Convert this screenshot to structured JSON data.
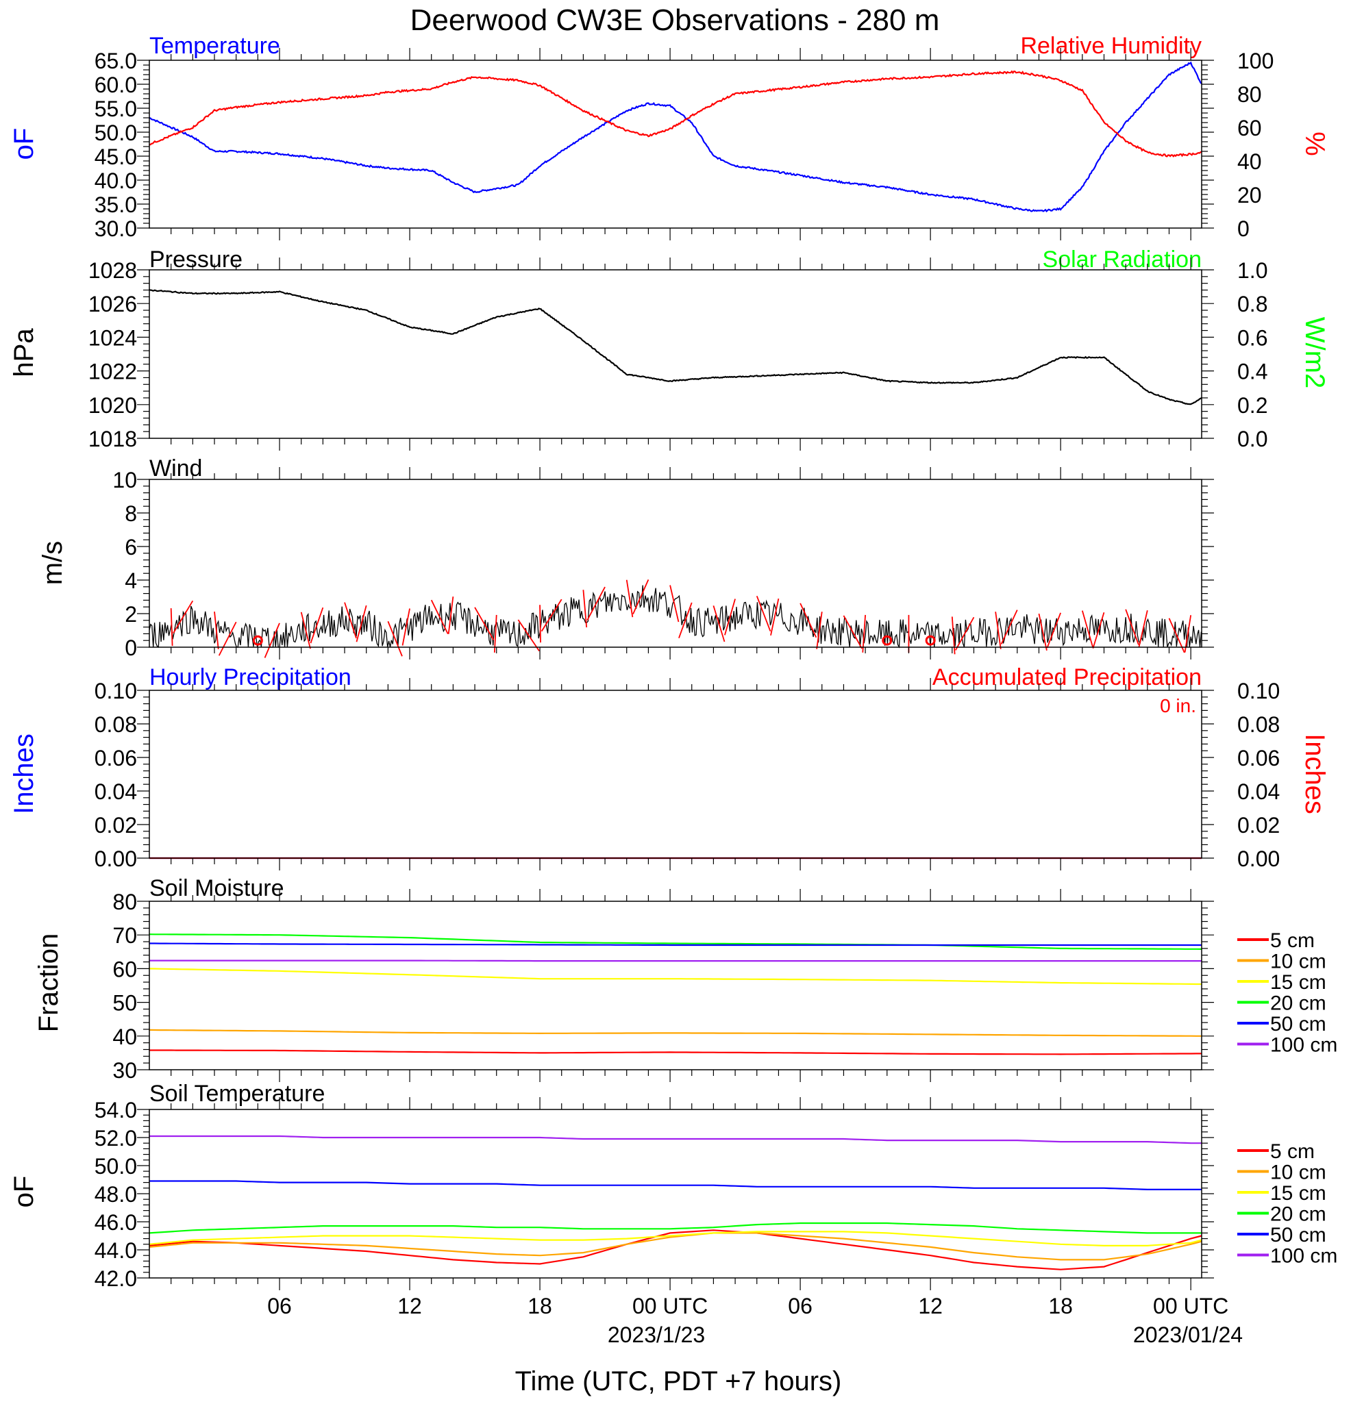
{
  "title": "Deerwood CW3E Observations - 280 m",
  "x_axis": {
    "tick_labels": [
      "06",
      "12",
      "18",
      "00 UTC",
      "06",
      "12",
      "18",
      "00 UTC"
    ],
    "date_labels": [
      "2023/1/23",
      "2023/01/24"
    ],
    "xlabel": "Time (UTC, PDT +7 hours)"
  },
  "colors": {
    "temperature": "#0000ff",
    "humidity": "#ff0000",
    "pressure": "#000000",
    "solar": "#00ff00",
    "wind": "#000000",
    "barbs": "#ff0000",
    "depth_5": "#ff0000",
    "depth_10": "#ffa500",
    "depth_15": "#ffff00",
    "depth_20": "#00ff00",
    "depth_50": "#0000ff",
    "depth_100": "#a020f0"
  },
  "panels": {
    "temp_rh": {
      "left_title": "Temperature",
      "right_title": "Relative Humidity",
      "left_unit": "oF",
      "right_unit": "%",
      "left_ticks": [
        "65.0",
        "60.0",
        "55.0",
        "50.0",
        "45.0",
        "40.0",
        "35.0",
        "30.0"
      ],
      "right_ticks": [
        "100",
        "80",
        "60",
        "40",
        "20",
        "0"
      ]
    },
    "pressure": {
      "left_title": "Pressure",
      "right_title": "Solar Radiation",
      "left_unit": "hPa",
      "right_unit": "W/m2",
      "left_ticks": [
        "1028",
        "1026",
        "1024",
        "1022",
        "1020",
        "1018"
      ],
      "right_ticks": [
        "1.0",
        "0.8",
        "0.6",
        "0.4",
        "0.2",
        "0.0"
      ]
    },
    "wind": {
      "left_title": "Wind",
      "left_unit": "m/s",
      "left_ticks": [
        "10",
        "8",
        "6",
        "4",
        "2",
        "0"
      ]
    },
    "precip": {
      "left_title": "Hourly Precipitation",
      "right_title": "Accumulated Precipitation",
      "total_label": "0 in.",
      "left_unit": "Inches",
      "right_unit": "Inches",
      "left_ticks": [
        "0.10",
        "0.08",
        "0.06",
        "0.04",
        "0.02",
        "0.00"
      ],
      "right_ticks": [
        "0.10",
        "0.08",
        "0.06",
        "0.04",
        "0.02",
        "0.00"
      ]
    },
    "soil_moisture": {
      "left_title": "Soil Moisture",
      "left_unit": "Fraction",
      "left_ticks": [
        "80",
        "70",
        "60",
        "50",
        "40",
        "30"
      ],
      "legend": [
        "5 cm",
        "10 cm",
        "15 cm",
        "20 cm",
        "50 cm",
        "100 cm"
      ]
    },
    "soil_temp": {
      "left_title": "Soil Temperature",
      "left_unit": "oF",
      "left_ticks": [
        "54.0",
        "52.0",
        "50.0",
        "48.0",
        "46.0",
        "44.0",
        "42.0"
      ],
      "legend": [
        "5 cm",
        "10 cm",
        "15 cm",
        "20 cm",
        "50 cm",
        "100 cm"
      ]
    }
  },
  "chart_data": [
    {
      "type": "line",
      "title": "Temperature / Relative Humidity",
      "x": [
        0,
        2,
        3,
        4,
        6,
        8,
        10,
        11,
        13,
        14,
        15,
        17,
        18,
        20,
        22,
        23,
        24,
        25,
        26,
        27,
        30,
        32,
        34,
        36,
        38,
        40,
        41,
        42,
        43,
        44,
        45,
        46,
        47,
        48,
        48.5
      ],
      "series": [
        {
          "name": "Temperature",
          "axis": "left",
          "unit": "oF",
          "values": [
            53,
            49,
            46,
            46,
            45.5,
            44.5,
            43,
            42.5,
            42,
            39.5,
            37.5,
            39,
            43,
            49,
            54.5,
            56,
            55.5,
            52,
            45,
            43,
            41,
            39.5,
            38.5,
            37,
            36,
            34,
            33.5,
            34,
            38.5,
            46,
            52,
            57,
            62,
            64.5,
            60
          ]
        },
        {
          "name": "Relative Humidity",
          "axis": "right",
          "unit": "%",
          "values": [
            50,
            60,
            70,
            72,
            75,
            77,
            79,
            81,
            83,
            87,
            90,
            88,
            85,
            70,
            58,
            55,
            59,
            67,
            74,
            80,
            84,
            87,
            89,
            90,
            92,
            93,
            91,
            88,
            82,
            63,
            52,
            45,
            43,
            44,
            45
          ]
        }
      ],
      "ylim_left": [
        30,
        65
      ],
      "ylim_right": [
        0,
        100
      ]
    },
    {
      "type": "line",
      "title": "Pressure",
      "x": [
        0,
        2,
        4,
        6,
        8,
        10,
        12,
        14,
        16,
        18,
        20,
        22,
        24,
        26,
        28,
        30,
        32,
        34,
        36,
        38,
        40,
        42,
        44,
        45,
        46,
        47,
        48,
        48.5
      ],
      "series": [
        {
          "name": "Pressure",
          "axis": "left",
          "unit": "hPa",
          "values": [
            1026.8,
            1026.6,
            1026.6,
            1026.7,
            1026.1,
            1025.6,
            1024.6,
            1024.2,
            1025.2,
            1025.7,
            1023.8,
            1021.8,
            1021.4,
            1021.6,
            1021.7,
            1021.8,
            1021.9,
            1021.4,
            1021.3,
            1021.3,
            1021.6,
            1022.8,
            1022.8,
            1021.8,
            1020.8,
            1020.3,
            1020.0,
            1020.4
          ]
        }
      ],
      "ylim_left": [
        1018,
        1028
      ],
      "ylim_right": [
        0.0,
        1.0
      ]
    },
    {
      "type": "line",
      "title": "Wind",
      "x": [
        0,
        1,
        2,
        3,
        4,
        5,
        6,
        7,
        8,
        9,
        10,
        11,
        12,
        13,
        14,
        15,
        16,
        17,
        18,
        19,
        20,
        21,
        22,
        23,
        24,
        25,
        26,
        27,
        28,
        29,
        30,
        31,
        32,
        33,
        34,
        35,
        36,
        37,
        38,
        39,
        40,
        41,
        42,
        43,
        44,
        45,
        46,
        47,
        48
      ],
      "series": [
        {
          "name": "Wind speed",
          "axis": "left",
          "unit": "m/s",
          "values": [
            0.6,
            1.2,
            1.8,
            1.0,
            0.5,
            0.6,
            0.4,
            1.0,
            1.3,
            1.6,
            1.4,
            0.5,
            1.2,
            1.8,
            1.9,
            1.4,
            0.8,
            0.7,
            1.4,
            1.9,
            2.3,
            2.6,
            2.9,
            3.0,
            2.6,
            1.6,
            1.4,
            1.8,
            2.0,
            1.8,
            1.6,
            1.0,
            0.9,
            0.8,
            0.7,
            0.8,
            0.6,
            0.7,
            0.8,
            1.0,
            1.2,
            0.9,
            1.0,
            1.1,
            1.0,
            1.2,
            1.1,
            0.7,
            0.8
          ]
        }
      ],
      "ylim_left": [
        0,
        10
      ]
    },
    {
      "type": "line",
      "title": "Precipitation",
      "x": [
        0,
        48.5
      ],
      "series": [
        {
          "name": "Hourly Precipitation",
          "axis": "left",
          "unit": "in",
          "values": [
            0,
            0
          ]
        },
        {
          "name": "Accumulated Precipitation",
          "axis": "right",
          "unit": "in",
          "values": [
            0,
            0
          ]
        }
      ],
      "ylim_left": [
        0,
        0.1
      ],
      "ylim_right": [
        0,
        0.1
      ]
    },
    {
      "type": "line",
      "title": "Soil Moisture",
      "x": [
        0,
        6,
        12,
        18,
        24,
        30,
        36,
        42,
        48.5
      ],
      "series": [
        {
          "name": "5 cm",
          "values": [
            35.8,
            35.7,
            35.3,
            35.0,
            35.2,
            35.0,
            34.7,
            34.6,
            34.8
          ]
        },
        {
          "name": "10 cm",
          "values": [
            41.8,
            41.5,
            41.0,
            40.8,
            40.9,
            40.8,
            40.5,
            40.2,
            40.0
          ]
        },
        {
          "name": "15 cm",
          "values": [
            60.0,
            59.3,
            58.2,
            57.0,
            57.0,
            56.8,
            56.5,
            55.8,
            55.4
          ]
        },
        {
          "name": "20 cm",
          "values": [
            70.2,
            70.0,
            69.2,
            67.8,
            67.5,
            67.3,
            67.0,
            66.0,
            65.8
          ]
        },
        {
          "name": "50 cm",
          "values": [
            67.5,
            67.3,
            67.2,
            67.1,
            67.0,
            67.0,
            67.0,
            67.0,
            67.0
          ]
        },
        {
          "name": "100 cm",
          "values": [
            62.4,
            62.4,
            62.4,
            62.3,
            62.3,
            62.3,
            62.3,
            62.3,
            62.3
          ]
        }
      ],
      "ylim_left": [
        30,
        80
      ]
    },
    {
      "type": "line",
      "title": "Soil Temperature",
      "x": [
        0,
        2,
        4,
        6,
        8,
        10,
        12,
        14,
        16,
        18,
        20,
        22,
        24,
        26,
        28,
        30,
        32,
        34,
        36,
        38,
        40,
        42,
        44,
        46,
        48,
        48.5
      ],
      "series": [
        {
          "name": "5 cm",
          "values": [
            44.3,
            44.6,
            44.5,
            44.3,
            44.1,
            43.9,
            43.6,
            43.3,
            43.1,
            43.0,
            43.5,
            44.4,
            45.2,
            45.4,
            45.2,
            44.8,
            44.4,
            44.0,
            43.6,
            43.1,
            42.8,
            42.6,
            42.8,
            43.8,
            44.8,
            45.0
          ]
        },
        {
          "name": "10 cm",
          "values": [
            44.2,
            44.5,
            44.5,
            44.5,
            44.4,
            44.3,
            44.1,
            43.9,
            43.7,
            43.6,
            43.8,
            44.4,
            44.9,
            45.2,
            45.2,
            45.0,
            44.8,
            44.5,
            44.2,
            43.8,
            43.5,
            43.3,
            43.3,
            43.7,
            44.4,
            44.6
          ]
        },
        {
          "name": "15 cm",
          "values": [
            44.4,
            44.7,
            44.8,
            44.9,
            45.0,
            45.0,
            45.0,
            44.9,
            44.8,
            44.7,
            44.7,
            44.8,
            45.0,
            45.2,
            45.3,
            45.3,
            45.3,
            45.2,
            45.0,
            44.8,
            44.6,
            44.4,
            44.3,
            44.3,
            44.5,
            44.7
          ]
        },
        {
          "name": "20 cm",
          "values": [
            45.2,
            45.4,
            45.5,
            45.6,
            45.7,
            45.7,
            45.7,
            45.7,
            45.6,
            45.6,
            45.5,
            45.5,
            45.5,
            45.6,
            45.8,
            45.9,
            45.9,
            45.9,
            45.8,
            45.7,
            45.5,
            45.4,
            45.3,
            45.2,
            45.2,
            45.2
          ]
        },
        {
          "name": "50 cm",
          "values": [
            48.9,
            48.9,
            48.9,
            48.8,
            48.8,
            48.8,
            48.7,
            48.7,
            48.7,
            48.6,
            48.6,
            48.6,
            48.6,
            48.6,
            48.5,
            48.5,
            48.5,
            48.5,
            48.5,
            48.4,
            48.4,
            48.4,
            48.4,
            48.3,
            48.3,
            48.3
          ]
        },
        {
          "name": "100 cm",
          "values": [
            52.1,
            52.1,
            52.1,
            52.1,
            52.0,
            52.0,
            52.0,
            52.0,
            52.0,
            52.0,
            51.9,
            51.9,
            51.9,
            51.9,
            51.9,
            51.9,
            51.9,
            51.8,
            51.8,
            51.8,
            51.8,
            51.7,
            51.7,
            51.7,
            51.6,
            51.6
          ]
        }
      ],
      "ylim_left": [
        42,
        54
      ]
    }
  ]
}
